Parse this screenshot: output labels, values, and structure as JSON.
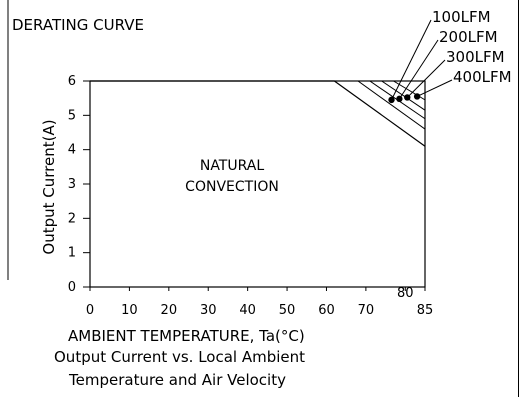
{
  "chart_data": {
    "type": "line",
    "title": "DERATING CURVE",
    "xlabel": "AMBIENT TEMPERATURE, Ta(°C)",
    "ylabel": "Output Current(A)",
    "caption_lines": [
      "Output Current vs. Local Ambient",
      "Temperature and Air Velocity"
    ],
    "xlim": [
      0,
      85
    ],
    "ylim": [
      0,
      6
    ],
    "x_ticks": [
      0,
      10,
      20,
      30,
      40,
      50,
      60,
      70,
      80,
      85
    ],
    "x_tick_labels": [
      "0",
      "10",
      "20",
      "30",
      "40",
      "50",
      "60",
      "70",
      "",
      "85"
    ],
    "x_extra_label": "80",
    "y_ticks": [
      0,
      1,
      2,
      3,
      4,
      5,
      6
    ],
    "y_tick_labels": [
      "0",
      "1",
      "2",
      "3",
      "4",
      "5",
      "6"
    ],
    "region_label_lines": [
      "NATURAL",
      "CONVECTION"
    ],
    "grid": false,
    "series": [
      {
        "name": "NATURAL CONVECTION",
        "x": [
          0,
          62,
          85
        ],
        "y": [
          6,
          6,
          4.1
        ]
      },
      {
        "name": "100LFM",
        "x": [
          0,
          68,
          85
        ],
        "y": [
          6,
          6,
          4.6
        ]
      },
      {
        "name": "200LFM",
        "x": [
          0,
          71,
          85
        ],
        "y": [
          6,
          6,
          4.9
        ]
      },
      {
        "name": "300LFM",
        "x": [
          0,
          74,
          85
        ],
        "y": [
          6,
          6,
          5.15
        ]
      },
      {
        "name": "400LFM",
        "x": [
          0,
          77,
          85
        ],
        "y": [
          6,
          6,
          5.45
        ]
      }
    ],
    "markers": [
      {
        "name": "100LFM",
        "x": 76.5,
        "y": 5.45
      },
      {
        "name": "200LFM",
        "x": 78.5,
        "y": 5.48
      },
      {
        "name": "300LFM",
        "x": 80.5,
        "y": 5.52
      },
      {
        "name": "400LFM",
        "x": 83.0,
        "y": 5.55
      }
    ],
    "legend_labels": [
      "100LFM",
      "200LFM",
      "300LFM",
      "400LFM"
    ]
  }
}
